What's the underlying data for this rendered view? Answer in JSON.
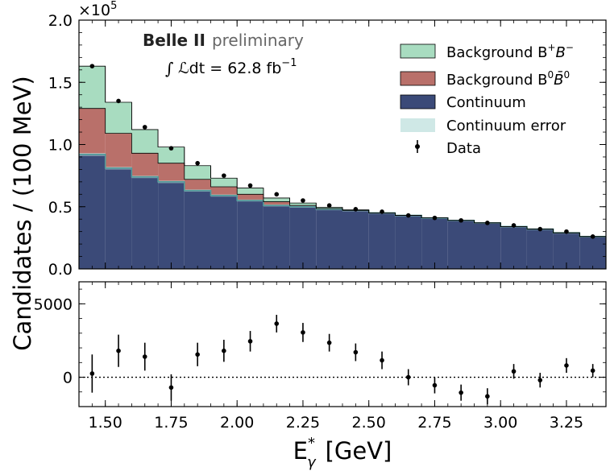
{
  "chart_data": [
    {
      "type": "bar",
      "panel": "top",
      "stacked": true,
      "title": "",
      "scale_label": "×10",
      "scale_exponent": "5",
      "ylabel": "Candidates / (100 MeV)",
      "ylim": [
        0,
        2.0
      ],
      "yticks": [
        0.0,
        0.5,
        1.0,
        1.5,
        2.0
      ],
      "ytick_labels": [
        "0.0",
        "0.5",
        "1.0",
        "1.5",
        "2.0"
      ],
      "bin_edges": [
        1.4,
        1.5,
        1.6,
        1.7,
        1.8,
        1.9,
        2.0,
        2.1,
        2.2,
        2.3,
        2.4,
        2.5,
        2.6,
        2.7,
        2.8,
        2.9,
        3.0,
        3.1,
        3.2,
        3.3,
        3.4
      ],
      "xlim": [
        1.4,
        3.4
      ],
      "series": [
        {
          "name": "Continuum",
          "color": "#3b4a78",
          "values": [
            0.92,
            0.81,
            0.74,
            0.7,
            0.63,
            0.59,
            0.55,
            0.51,
            0.5,
            0.48,
            0.47,
            0.45,
            0.43,
            0.41,
            0.39,
            0.37,
            0.34,
            0.32,
            0.29,
            0.26
          ]
        },
        {
          "name": "Background B^0B̄^0",
          "color": "#b9706a",
          "values": [
            0.37,
            0.28,
            0.19,
            0.15,
            0.09,
            0.07,
            0.05,
            0.03,
            0.01,
            0.005,
            0.0,
            0.0,
            0.0,
            0.0,
            0.0,
            0.0,
            0.0,
            0.0,
            0.0,
            0.0
          ]
        },
        {
          "name": "Background B^+B^-",
          "color": "#a8dcc0",
          "values": [
            0.34,
            0.25,
            0.19,
            0.13,
            0.11,
            0.07,
            0.05,
            0.03,
            0.02,
            0.01,
            0.005,
            0.0,
            0.0,
            0.0,
            0.0,
            0.0,
            0.0,
            0.0,
            0.0,
            0.0
          ]
        }
      ],
      "continuum_error": {
        "name": "Continuum error",
        "color": "#cfe8e6",
        "values": [
          0.012,
          0.011,
          0.01,
          0.01,
          0.009,
          0.009,
          0.008,
          0.008,
          0.008,
          0.008,
          0.008,
          0.007,
          0.007,
          0.007,
          0.007,
          0.007,
          0.007,
          0.007,
          0.007,
          0.007
        ]
      },
      "data": {
        "name": "Data",
        "x": [
          1.45,
          1.55,
          1.65,
          1.75,
          1.85,
          1.95,
          2.05,
          2.15,
          2.25,
          2.35,
          2.45,
          2.55,
          2.65,
          2.75,
          2.85,
          2.95,
          3.05,
          3.15,
          3.25,
          3.35
        ],
        "y": [
          1.63,
          1.35,
          1.14,
          0.97,
          0.85,
          0.75,
          0.67,
          0.6,
          0.55,
          0.51,
          0.48,
          0.46,
          0.43,
          0.41,
          0.39,
          0.37,
          0.35,
          0.32,
          0.3,
          0.26
        ]
      },
      "annotations": {
        "experiment": "Belle II",
        "status": "preliminary",
        "lumi_symbol": "ℒdt = 62.8 fb",
        "lumi_exponent": "−1"
      },
      "legend": {
        "position": "top-right",
        "entries": [
          {
            "label": "Background B",
            "sup1": "+",
            "mid": "B",
            "sup2": "−",
            "key": "bpbm"
          },
          {
            "label": "Background B",
            "sup1": "0",
            "mid": "B̄",
            "sup2": "0",
            "key": "b0b0"
          },
          {
            "label": "Continuum",
            "key": "cont"
          },
          {
            "label": "Continuum error",
            "key": "conterr"
          },
          {
            "label": "Data",
            "key": "data"
          }
        ]
      }
    },
    {
      "type": "scatter",
      "panel": "bottom",
      "title": "",
      "xlabel": "E",
      "xlabel_sup": "*",
      "xlabel_sub": "γ",
      "xlabel_unit": "[GeV]",
      "ylim": [
        -2000,
        6500
      ],
      "yticks": [
        0,
        5000
      ],
      "ytick_labels": [
        "0",
        "5000"
      ],
      "xticks": [
        1.5,
        1.75,
        2.0,
        2.25,
        2.5,
        2.75,
        3.0,
        3.25
      ],
      "xtick_labels": [
        "1.50",
        "1.75",
        "2.00",
        "2.25",
        "2.50",
        "2.75",
        "3.00",
        "3.25"
      ],
      "zero_line": "dotted",
      "points": {
        "x": [
          1.45,
          1.55,
          1.65,
          1.75,
          1.85,
          1.95,
          2.05,
          2.15,
          2.25,
          2.35,
          2.45,
          2.55,
          2.65,
          2.75,
          2.85,
          2.95,
          3.05,
          3.15,
          3.25,
          3.35
        ],
        "y": [
          250,
          1800,
          1400,
          -700,
          1550,
          1800,
          2450,
          3650,
          3050,
          2350,
          1700,
          1150,
          0,
          -550,
          -1050,
          -1300,
          400,
          -200,
          800,
          450
        ],
        "err": [
          1300,
          1100,
          950,
          900,
          800,
          750,
          700,
          600,
          650,
          600,
          600,
          600,
          550,
          550,
          550,
          550,
          500,
          500,
          500,
          450
        ]
      }
    }
  ]
}
